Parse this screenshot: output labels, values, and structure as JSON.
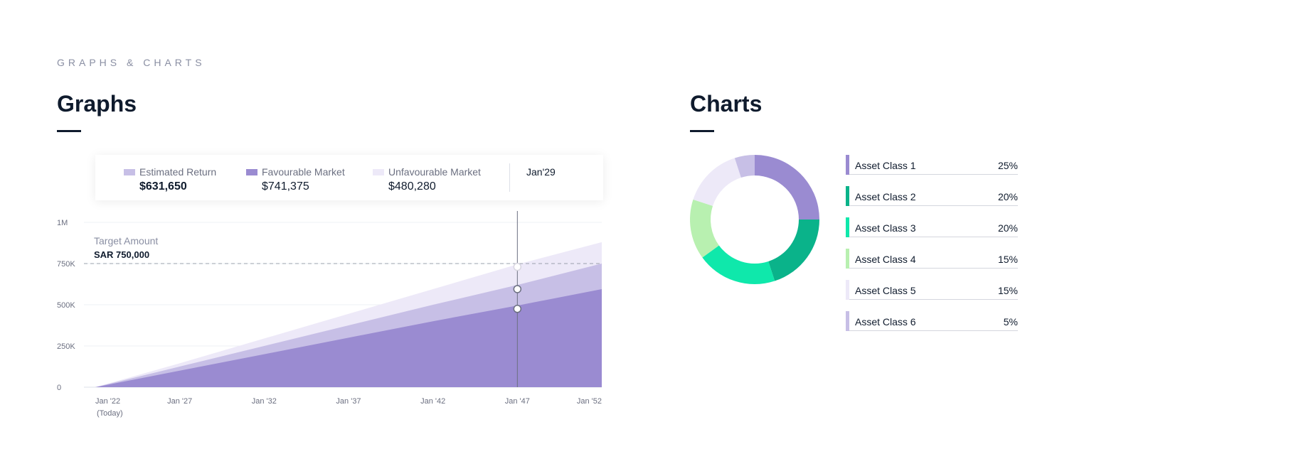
{
  "eyebrow": "GRAPHS & CHARTS",
  "graphs": {
    "title": "Graphs"
  },
  "charts": {
    "title": "Charts"
  },
  "tooltip": {
    "date": "Jan'29",
    "items": [
      {
        "label": "Estimated Return",
        "value": "$631,650",
        "color": "#c7bfe6"
      },
      {
        "label": "Favourable Market",
        "value": "$741,375",
        "color": "#9a8bd1"
      },
      {
        "label": "Unfavourable Market",
        "value": "$480,280",
        "color": "#ede9f8"
      }
    ]
  },
  "target": {
    "label": "Target Amount",
    "value": "SAR 750,000",
    "amount": 750000
  },
  "chart_data": [
    {
      "type": "area",
      "y_ticks": [
        "0",
        "250K",
        "500K",
        "750K",
        "1M"
      ],
      "y_tick_values": [
        0,
        250000,
        500000,
        750000,
        1000000
      ],
      "ylim": [
        0,
        1000000
      ],
      "x": [
        "Jan '22",
        "Jan '27",
        "Jan '32",
        "Jan '37",
        "Jan '42",
        "Jan '47",
        "Jan '52"
      ],
      "x_sublabel_first": "(Today)",
      "series": [
        {
          "values": [
            0,
            145000,
            295000,
            445000,
            595000,
            745000,
            880000
          ],
          "color": "#ede9f8"
        },
        {
          "values": [
            0,
            125000,
            250000,
            375000,
            500000,
            620000,
            750000
          ],
          "color": "#c7bfe6"
        },
        {
          "values": [
            0,
            100000,
            200000,
            300000,
            400000,
            495000,
            595000
          ],
          "color": "#9a8bd1"
        }
      ],
      "hover_x_index": 5,
      "hover_values": [
        730000,
        595000,
        475000
      ]
    },
    {
      "type": "pie",
      "categories": [
        "Asset Class 1",
        "Asset Class 2",
        "Asset Class 3",
        "Asset Class 4",
        "Asset Class 5",
        "Asset Class 6"
      ],
      "values": [
        25,
        20,
        20,
        15,
        15,
        5
      ],
      "labels": [
        "25%",
        "20%",
        "20%",
        "15%",
        "15%",
        "5%"
      ],
      "colors": [
        "#9a8bd1",
        "#0ab38a",
        "#0fe8ab",
        "#b8f0b0",
        "#ede9f8",
        "#c7bfe6"
      ]
    }
  ]
}
